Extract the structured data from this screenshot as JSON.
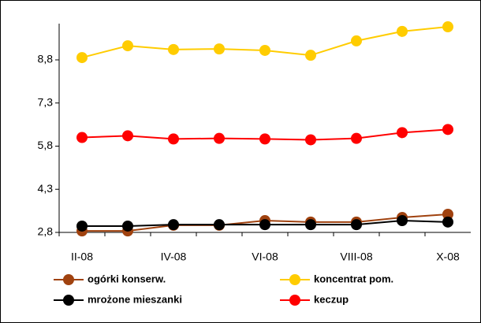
{
  "chart_data": {
    "type": "line",
    "categories": [
      "II-08",
      null,
      "IV-08",
      null,
      "VI-08",
      null,
      "VIII-08",
      null,
      "X-08"
    ],
    "series": [
      {
        "name": "ogórki konserw.",
        "color": "#a0420f",
        "values": [
          2.85,
          2.85,
          3.05,
          3.05,
          3.21,
          3.16,
          3.16,
          3.32,
          3.43
        ]
      },
      {
        "name": "koncentrat pom.",
        "color": "#ffcc00",
        "values": [
          8.88,
          9.29,
          9.16,
          9.18,
          9.13,
          8.96,
          9.46,
          9.79,
          9.95
        ]
      },
      {
        "name": "mrożone mieszanki",
        "color": "#000000",
        "values": [
          3.02,
          3.02,
          3.07,
          3.07,
          3.07,
          3.07,
          3.07,
          3.21,
          3.16
        ]
      },
      {
        "name": "keczup",
        "color": "#ff0000",
        "values": [
          6.1,
          6.16,
          6.05,
          6.07,
          6.05,
          6.02,
          6.07,
          6.27,
          6.38
        ]
      }
    ],
    "ylim": [
      2.8,
      10.06
    ],
    "yticks": [
      {
        "value": 2.8,
        "label": "2,8"
      },
      {
        "value": 4.3,
        "label": "4,3"
      },
      {
        "value": 5.8,
        "label": "5,8"
      },
      {
        "value": 7.3,
        "label": "7,3"
      },
      {
        "value": 8.8,
        "label": "8,8"
      }
    ],
    "legend": "bottom"
  }
}
